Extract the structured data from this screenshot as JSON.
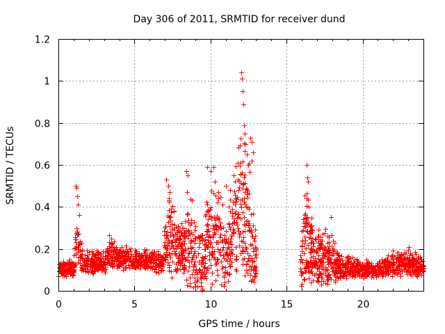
{
  "chart_data": {
    "type": "scatter",
    "title": "Day 306 of 2011, SRMTID for receiver dund",
    "xlabel": "GPS time / hours",
    "ylabel": "SRMTID / TECUs",
    "xlim": [
      0,
      24
    ],
    "ylim": [
      0,
      1.2
    ],
    "x_ticks": [
      0,
      5,
      10,
      15,
      20
    ],
    "y_ticks": [
      0,
      0.2,
      0.4,
      0.6,
      0.8,
      1,
      1.2
    ],
    "x_tick_labels": [
      "0",
      "5",
      "10",
      "15",
      "20"
    ],
    "y_tick_labels": [
      "0",
      "0.2",
      "0.4",
      "0.6",
      "0.8",
      "1",
      "1.2"
    ],
    "grid": true,
    "marker": "+",
    "marker_color": "#ff0000",
    "data_gap_hours": [
      13.0,
      15.9
    ],
    "profile": [
      {
        "t": 0.0,
        "base": 0.09,
        "spread": 0.05
      },
      {
        "t": 1.0,
        "base": 0.1,
        "spread": 0.06
      },
      {
        "t": 1.2,
        "base": 0.25,
        "spread": 0.2
      },
      {
        "t": 1.6,
        "base": 0.12,
        "spread": 0.08
      },
      {
        "t": 3.0,
        "base": 0.12,
        "spread": 0.08
      },
      {
        "t": 3.3,
        "base": 0.16,
        "spread": 0.12
      },
      {
        "t": 4.0,
        "base": 0.14,
        "spread": 0.08
      },
      {
        "t": 5.5,
        "base": 0.14,
        "spread": 0.07
      },
      {
        "t": 6.8,
        "base": 0.12,
        "spread": 0.08
      },
      {
        "t": 7.2,
        "base": 0.22,
        "spread": 0.28
      },
      {
        "t": 8.2,
        "base": 0.15,
        "spread": 0.18
      },
      {
        "t": 8.6,
        "base": 0.15,
        "spread": 0.35
      },
      {
        "t": 9.5,
        "base": 0.1,
        "spread": 0.2
      },
      {
        "t": 10.0,
        "base": 0.22,
        "spread": 0.35
      },
      {
        "t": 11.0,
        "base": 0.15,
        "spread": 0.3
      },
      {
        "t": 11.5,
        "base": 0.25,
        "spread": 0.3
      },
      {
        "t": 12.0,
        "base": 0.3,
        "spread": 0.5
      },
      {
        "t": 12.6,
        "base": 0.2,
        "spread": 0.4
      },
      {
        "t": 13.0,
        "base": 0.1,
        "spread": 0.15
      },
      {
        "t": 15.9,
        "base": 0.08,
        "spread": 0.12
      },
      {
        "t": 16.2,
        "base": 0.2,
        "spread": 0.35
      },
      {
        "t": 16.8,
        "base": 0.12,
        "spread": 0.18
      },
      {
        "t": 18.0,
        "base": 0.12,
        "spread": 0.18
      },
      {
        "t": 18.5,
        "base": 0.1,
        "spread": 0.08
      },
      {
        "t": 21.0,
        "base": 0.09,
        "spread": 0.05
      },
      {
        "t": 22.0,
        "base": 0.11,
        "spread": 0.08
      },
      {
        "t": 23.0,
        "base": 0.12,
        "spread": 0.1
      },
      {
        "t": 24.0,
        "base": 0.1,
        "spread": 0.06
      }
    ],
    "peaks": [
      [
        1.15,
        0.5
      ],
      [
        1.2,
        0.49
      ],
      [
        1.25,
        0.45
      ],
      [
        1.3,
        0.41
      ],
      [
        1.35,
        0.36
      ],
      [
        7.1,
        0.53
      ],
      [
        7.2,
        0.5
      ],
      [
        7.3,
        0.47
      ],
      [
        7.25,
        0.43
      ],
      [
        7.4,
        0.39
      ],
      [
        8.4,
        0.57
      ],
      [
        8.5,
        0.55
      ],
      [
        8.45,
        0.47
      ],
      [
        9.8,
        0.59
      ],
      [
        10.0,
        0.57
      ],
      [
        10.2,
        0.59
      ],
      [
        10.3,
        0.52
      ],
      [
        10.5,
        0.47
      ],
      [
        11.0,
        0.5
      ],
      [
        11.3,
        0.48
      ],
      [
        11.5,
        0.55
      ],
      [
        11.6,
        0.52
      ],
      [
        11.8,
        0.61
      ],
      [
        12.0,
        1.04
      ],
      [
        12.05,
        1.01
      ],
      [
        12.1,
        0.95
      ],
      [
        12.15,
        0.89
      ],
      [
        12.2,
        0.79
      ],
      [
        12.25,
        0.75
      ],
      [
        12.3,
        0.7
      ],
      [
        12.4,
        0.65
      ],
      [
        12.5,
        0.6
      ],
      [
        12.6,
        0.73
      ],
      [
        12.7,
        0.71
      ],
      [
        12.8,
        0.66
      ],
      [
        12.7,
        0.62
      ],
      [
        16.3,
        0.6
      ],
      [
        16.35,
        0.54
      ],
      [
        16.4,
        0.52
      ],
      [
        16.3,
        0.44
      ],
      [
        16.45,
        0.4
      ],
      [
        17.9,
        0.35
      ]
    ],
    "point_count": 2600,
    "seed": 20111102
  }
}
